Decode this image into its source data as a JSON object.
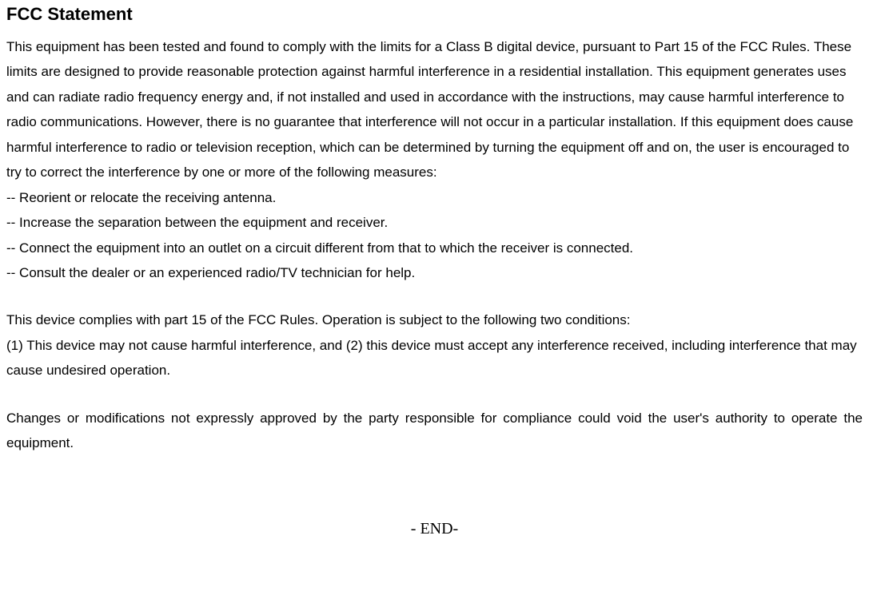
{
  "title": "FCC Statement",
  "para1": "This equipment has been tested and found to comply with the limits for a Class B digital device, pursuant to Part 15 of the FCC Rules. These limits are designed to provide reasonable protection against harmful interference in a residential installation. This equipment generates uses and can radiate radio frequency energy and, if not installed and used in accordance with the instructions, may cause harmful interference to radio communications. However, there is no guarantee that interference will not occur in a particular installation. If this equipment does cause harmful interference to radio or television reception, which can be determined by turning the equipment off and on, the user is encouraged to try to correct the interference by one or more of the following measures:",
  "bullet1": "-- Reorient or relocate the receiving antenna.",
  "bullet2": "-- Increase the separation between the equipment and receiver.",
  "bullet3": "-- Connect the equipment into an outlet on a circuit different from that to which the receiver is connected.",
  "bullet4": "-- Consult the dealer or an experienced radio/TV technician for help.",
  "para2": "This device complies with part 15 of the FCC Rules. Operation is subject to the following two conditions:",
  "para3": "(1) This device may not cause harmful interference, and (2) this device must accept any interference received, including interference that may cause undesired operation.",
  "para4": "Changes or modifications not expressly approved by the party responsible for compliance could void the user's authority to operate the equipment.",
  "end": "- END-",
  "colors": {
    "text": "#000000",
    "background": "#ffffff"
  },
  "typography": {
    "title_fontsize": 22,
    "title_weight": "bold",
    "body_fontsize": 17,
    "body_lineheight": 1.85,
    "body_family": "Arial",
    "end_fontsize": 20,
    "end_family": "Times New Roman"
  }
}
